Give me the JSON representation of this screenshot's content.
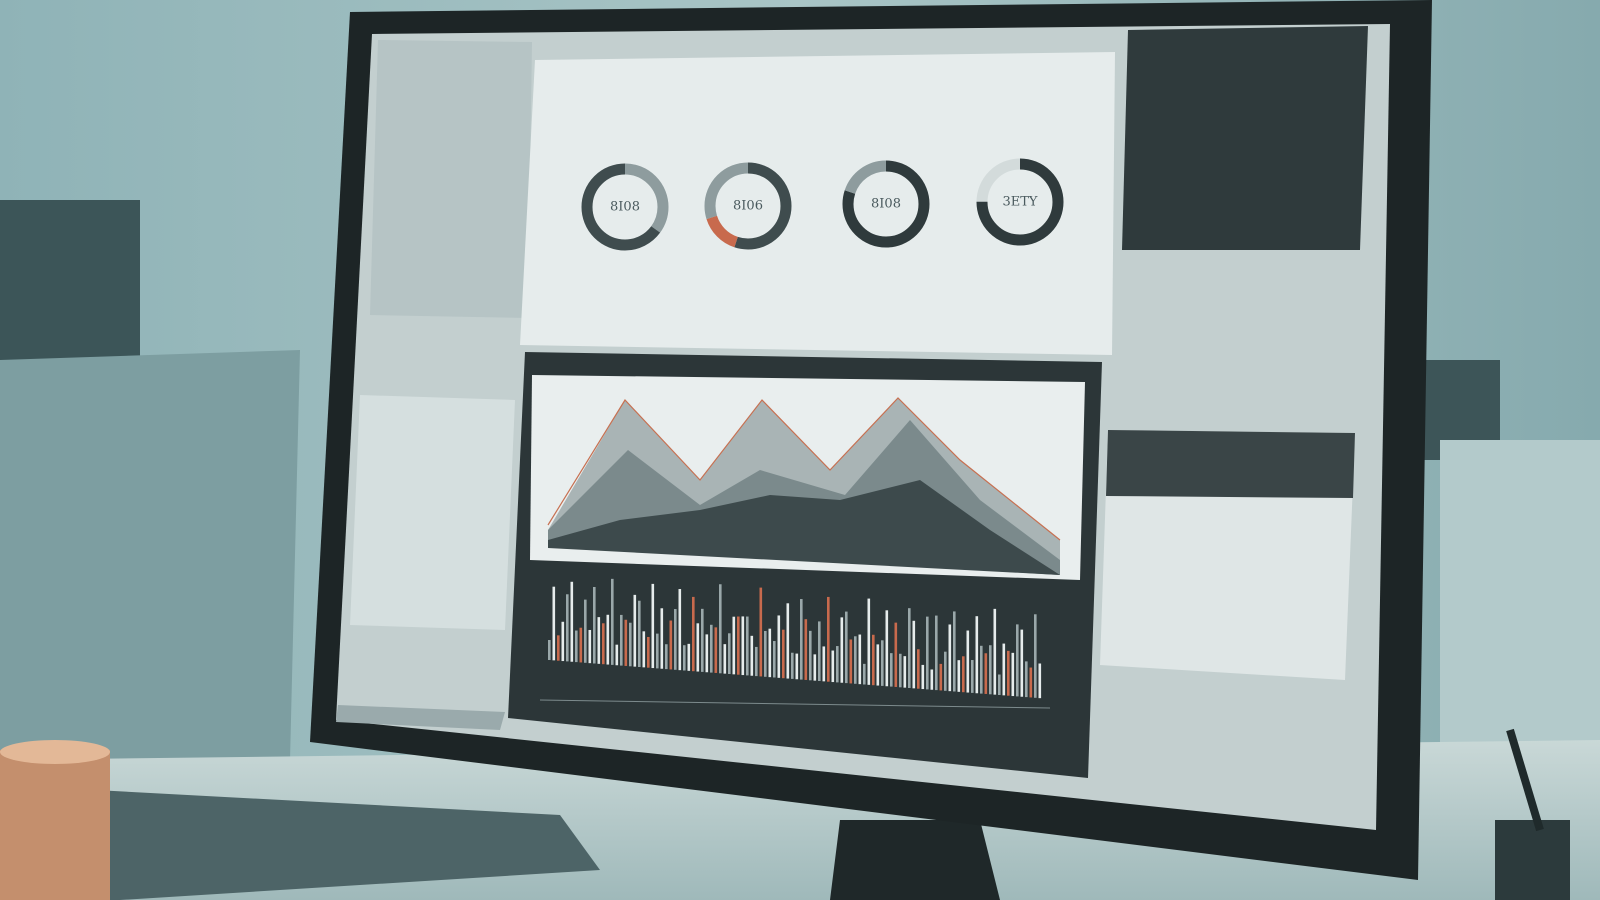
{
  "screen": {
    "donut_labels": [
      "8I08",
      "8I06",
      "8I08",
      "3ETY"
    ]
  }
}
